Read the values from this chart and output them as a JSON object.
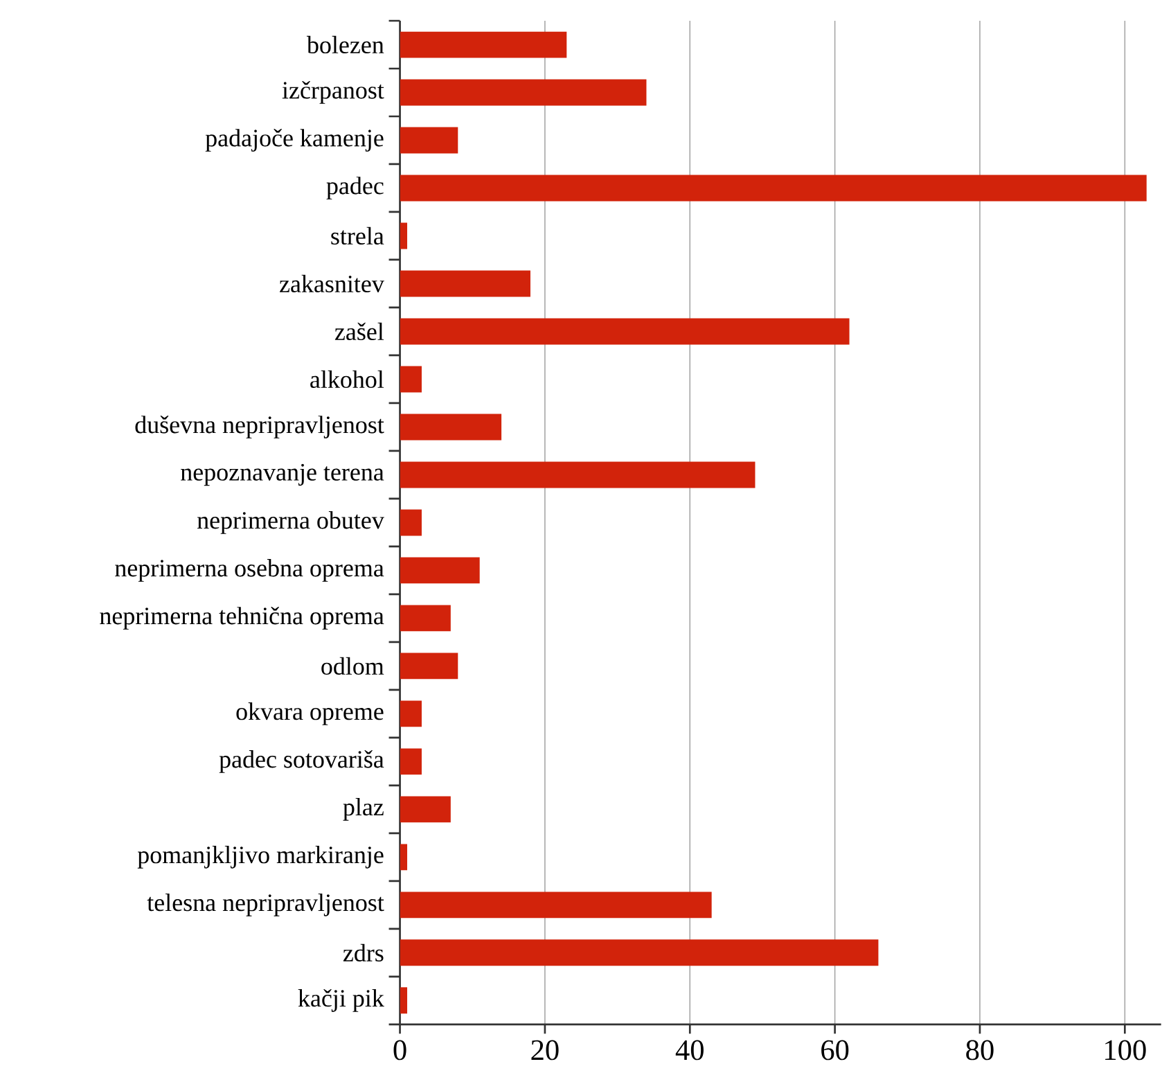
{
  "chart_data": {
    "type": "bar",
    "orientation": "horizontal",
    "categories": [
      "bolezen",
      "izčrpanost",
      "padajoče kamenje",
      "padec",
      "strela",
      "zakasnitev",
      "zašel",
      "alkohol",
      "duševna nepripravljenost",
      "nepoznavanje terena",
      "neprimerna obutev",
      "neprimerna osebna oprema",
      "neprimerna tehnična oprema",
      "odlom",
      "okvara opreme",
      "padec sotovariša",
      "plaz",
      "pomanjkljivo markiranje",
      "telesna nepripravljenost",
      "zdrs",
      "kačji pik"
    ],
    "values": [
      23,
      34,
      8,
      103,
      1,
      18,
      62,
      3,
      14,
      49,
      3,
      11,
      7,
      8,
      3,
      3,
      7,
      1,
      43,
      66,
      1
    ],
    "color": "#d2230b",
    "xlim": [
      0,
      105
    ],
    "xticks": [
      0,
      20,
      40,
      60,
      80,
      100
    ],
    "grid": "x"
  }
}
